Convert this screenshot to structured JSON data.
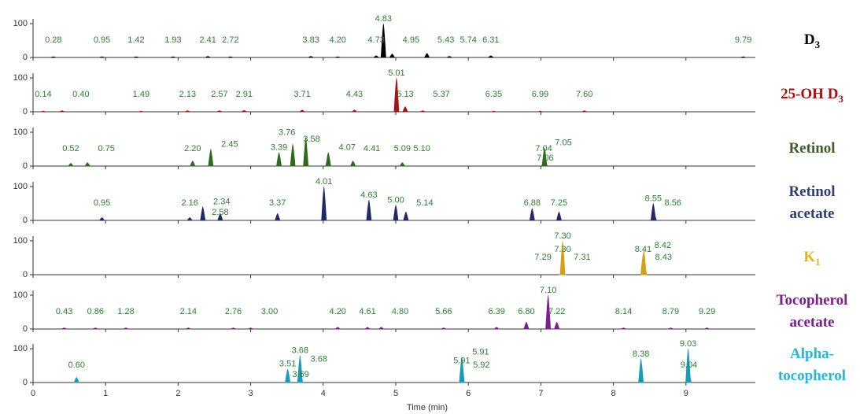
{
  "chart_data": [
    {
      "type": "chromatogram",
      "name_lines": [
        "D"
      ],
      "subscript": "3",
      "name_color": "#000000",
      "color": "#000000",
      "label_color": "#2e7d32",
      "xlim": [
        0,
        10
      ],
      "xticks": [
        0,
        1,
        2,
        3,
        4,
        5,
        6,
        7,
        8,
        9
      ],
      "ylim": [
        0,
        100
      ],
      "yticks": [
        0,
        100
      ],
      "x": [
        0.28,
        0.95,
        1.42,
        1.93,
        2.41,
        2.72,
        3.83,
        4.2,
        4.73,
        4.83,
        4.95,
        5.43,
        5.74,
        6.31,
        9.79
      ],
      "x_labels": [
        "0.28",
        "0.95",
        "1.42",
        "1.93",
        "2.41",
        "2.72",
        "3.83",
        "4.20",
        "4.73",
        "4.83",
        "4.95",
        "5.43",
        "5.74",
        "6.31",
        "9.79"
      ],
      "values": [
        2,
        2,
        2,
        2,
        3,
        2,
        3,
        2,
        5,
        100,
        10,
        12,
        3,
        5,
        2
      ]
    },
    {
      "type": "chromatogram",
      "name_lines": [
        "25-OH D"
      ],
      "subscript": "3",
      "name_color": "#a31515",
      "color": "#a31515",
      "label_color": "#2e7d32",
      "xlim": [
        0,
        10
      ],
      "xticks": [
        0,
        1,
        2,
        3,
        4,
        5,
        6,
        7,
        8,
        9
      ],
      "ylim": [
        0,
        100
      ],
      "yticks": [
        0,
        100
      ],
      "x": [
        0.14,
        0.4,
        1.49,
        2.13,
        2.57,
        2.91,
        3.71,
        4.43,
        5.01,
        5.13,
        5.37,
        6.35,
        6.99,
        7.6
      ],
      "x_labels": [
        "0.14",
        "0.40",
        "1.49",
        "2.13",
        "2.57",
        "2.91",
        "3.71",
        "4.43",
        "5.01",
        "5.13",
        "5.37",
        "6.35",
        "6.99",
        "7.60"
      ],
      "values": [
        2,
        3,
        2,
        3,
        3,
        4,
        5,
        5,
        100,
        15,
        3,
        2,
        2,
        3
      ]
    },
    {
      "type": "chromatogram",
      "name_lines": [
        "Retinol"
      ],
      "name_color": "#3b5e2b",
      "color": "#2e6b1e",
      "label_color": "#2e7d32",
      "xlim": [
        0,
        10
      ],
      "xticks": [
        0,
        1,
        2,
        3,
        4,
        5,
        6,
        7,
        8,
        9
      ],
      "ylim": [
        0,
        100
      ],
      "yticks": [
        0,
        100
      ],
      "x": [
        0.52,
        0.75,
        2.2,
        2.45,
        3.39,
        3.58,
        3.76,
        4.07,
        4.41,
        5.09,
        5.1,
        7.04,
        7.05,
        7.06
      ],
      "x_labels": [
        "0.52",
        "0.75",
        "2.20",
        "2.45",
        "3.39",
        "3.58",
        "3.76",
        "4.07",
        "4.41",
        "5.09",
        "5.10",
        "7.04",
        "7.05",
        "7.06"
      ],
      "values": [
        8,
        10,
        15,
        50,
        40,
        65,
        85,
        40,
        15,
        10,
        3,
        10,
        55,
        10
      ]
    },
    {
      "type": "chromatogram",
      "name_lines": [
        "Retinol",
        "acetate"
      ],
      "name_color": "#2f3f6f",
      "color": "#1f2a6b",
      "label_color": "#2e7d32",
      "xlim": [
        0,
        10
      ],
      "xticks": [
        0,
        1,
        2,
        3,
        4,
        5,
        6,
        7,
        8,
        9
      ],
      "ylim": [
        0,
        100
      ],
      "yticks": [
        0,
        100
      ],
      "x": [
        0.95,
        2.16,
        2.34,
        2.58,
        3.37,
        4.01,
        4.63,
        5.0,
        5.14,
        6.88,
        7.25,
        8.55,
        8.56
      ],
      "x_labels": [
        "0.95",
        "2.16",
        "2.34",
        "2.58",
        "3.37",
        "4.01",
        "4.63",
        "5.00",
        "5.14",
        "6.88",
        "7.25",
        "8.55",
        "8.56"
      ],
      "values": [
        8,
        8,
        40,
        20,
        20,
        100,
        60,
        45,
        25,
        35,
        25,
        50,
        20
      ]
    },
    {
      "type": "chromatogram",
      "name_lines": [
        "K"
      ],
      "subscript": "1",
      "name_color": "#e6b422",
      "color": "#d4a017",
      "label_color": "#2e7d32",
      "xlim": [
        0,
        10
      ],
      "xticks": [
        0,
        1,
        2,
        3,
        4,
        5,
        6,
        7,
        8,
        9
      ],
      "ylim": [
        0,
        100
      ],
      "yticks": [
        0,
        100
      ],
      "x": [
        7.3,
        7.3,
        7.29,
        7.31,
        8.41,
        8.42,
        8.43
      ],
      "x_labels": [
        "7.30",
        "7.30",
        "7.29",
        "7.31",
        "8.41",
        "8.42",
        "8.43"
      ],
      "values": [
        60,
        100,
        5,
        5,
        60,
        72,
        20
      ]
    },
    {
      "type": "chromatogram",
      "name_lines": [
        "Tocopherol",
        "acetate"
      ],
      "name_color": "#7b1f8f",
      "color": "#7b1f8f",
      "label_color": "#2e7d32",
      "xlim": [
        0,
        10
      ],
      "xticks": [
        0,
        1,
        2,
        3,
        4,
        5,
        6,
        7,
        8,
        9
      ],
      "ylim": [
        0,
        100
      ],
      "yticks": [
        0,
        100
      ],
      "x": [
        0.43,
        0.86,
        1.28,
        2.14,
        2.76,
        3.0,
        4.2,
        4.61,
        4.8,
        5.66,
        6.39,
        6.8,
        7.1,
        7.22,
        8.14,
        8.79,
        9.29
      ],
      "x_labels": [
        "0.43",
        "0.86",
        "1.28",
        "2.14",
        "2.76",
        "3.00",
        "4.20",
        "4.61",
        "4.80",
        "5.66",
        "6.39",
        "6.80",
        "7.10",
        "7.22",
        "8.14",
        "8.79",
        "9.29"
      ],
      "values": [
        3,
        3,
        3,
        3,
        3,
        3,
        5,
        5,
        5,
        3,
        5,
        20,
        100,
        20,
        3,
        3,
        3
      ]
    },
    {
      "type": "chromatogram",
      "name_lines": [
        "Alpha-",
        "tocopherol"
      ],
      "name_color": "#2bb5d9",
      "color": "#1a9bb8",
      "label_color": "#2e7d32",
      "xlim": [
        0,
        10
      ],
      "xticks": [
        0,
        1,
        2,
        3,
        4,
        5,
        6,
        7,
        8,
        9
      ],
      "ylim": [
        0,
        100
      ],
      "yticks": [
        0,
        100
      ],
      "x": [
        0.6,
        3.51,
        3.68,
        3.68,
        3.69,
        5.91,
        5.91,
        5.92,
        8.38,
        9.03,
        9.04
      ],
      "x_labels": [
        "0.60",
        "3.51",
        "3.68",
        "3.68",
        "3.69",
        "5.91",
        "5.91",
        "5.92",
        "8.38",
        "9.03",
        "9.04"
      ],
      "values": [
        15,
        40,
        80,
        55,
        10,
        50,
        75,
        10,
        70,
        100,
        30
      ],
      "xlabel": "Time (min)"
    }
  ]
}
